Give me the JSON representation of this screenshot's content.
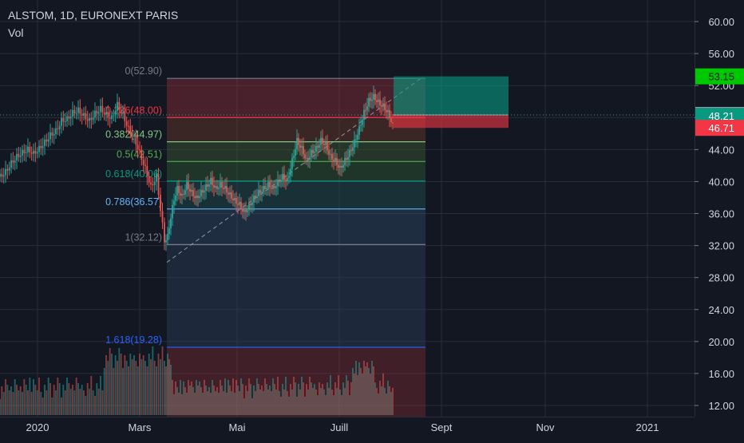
{
  "header": {
    "symbol_line": "ALSTOM, 1D, EURONEXT PARIS",
    "indicator": "Vol"
  },
  "colors": {
    "background": "#131722",
    "grid": "#2a2e39",
    "axis_text": "#d1d4dc",
    "up": "#26a69a",
    "down": "#ef5350",
    "target": "#089981",
    "stop": "#f23645",
    "fib_0": "#787b86",
    "fib_0236": "#f23645",
    "fib_0382": "#81c784",
    "fib_05": "#4caf50",
    "fib_0618": "#089981",
    "fib_0786": "#64b5f6",
    "fib_1": "#787b86",
    "fib_1618": "#2962ff"
  },
  "chart_data": {
    "type": "candlestick",
    "title": "ALSTOM, 1D, EURONEXT PARIS",
    "x_ticks": [
      "2020",
      "Mars",
      "Mai",
      "Juill",
      "Sept",
      "Nov",
      "2021"
    ],
    "y_ticks": [
      "12.00",
      "16.00",
      "20.00",
      "24.00",
      "28.00",
      "32.00",
      "36.00",
      "40.00",
      "44.00",
      "48.00",
      "52.00",
      "56.00",
      "60.00"
    ],
    "ylim": [
      11.6,
      62.2
    ],
    "grid": true,
    "price_series": {
      "name": "ALSTOM",
      "points": [
        [
          0,
          40.6
        ],
        [
          7,
          41.2
        ],
        [
          14,
          42.3
        ],
        [
          21,
          43.1
        ],
        [
          28,
          43.6
        ],
        [
          35,
          44.0
        ],
        [
          42,
          43.5
        ],
        [
          49,
          44.1
        ],
        [
          56,
          44.9
        ],
        [
          63,
          45.8
        ],
        [
          70,
          46.3
        ],
        [
          77,
          47.6
        ],
        [
          84,
          47.8
        ],
        [
          91,
          48.6
        ],
        [
          98,
          48.9
        ],
        [
          105,
          48.2
        ],
        [
          112,
          47.6
        ],
        [
          119,
          48.5
        ],
        [
          126,
          49.1
        ],
        [
          133,
          48.3
        ],
        [
          140,
          47.9
        ],
        [
          147,
          49.6
        ],
        [
          154,
          48.3
        ],
        [
          161,
          46.6
        ],
        [
          168,
          45.4
        ],
        [
          175,
          43.6
        ],
        [
          182,
          41.6
        ],
        [
          189,
          39.3
        ],
        [
          196,
          40.6
        ],
        [
          201,
          36.5
        ],
        [
          206,
          32.6
        ],
        [
          210,
          33.1
        ],
        [
          214,
          35.6
        ],
        [
          218,
          37.8
        ],
        [
          222,
          39.1
        ],
        [
          228,
          38.1
        ],
        [
          234,
          39.6
        ],
        [
          240,
          38.6
        ],
        [
          246,
          37.9
        ],
        [
          252,
          38.6
        ],
        [
          258,
          39.3
        ],
        [
          264,
          40.1
        ],
        [
          270,
          39.1
        ],
        [
          276,
          39.6
        ],
        [
          282,
          39.1
        ],
        [
          288,
          38.3
        ],
        [
          294,
          37.6
        ],
        [
          300,
          37.1
        ],
        [
          306,
          36.1
        ],
        [
          312,
          36.9
        ],
        [
          318,
          37.9
        ],
        [
          324,
          38.6
        ],
        [
          330,
          39.1
        ],
        [
          336,
          39.6
        ],
        [
          342,
          39.1
        ],
        [
          348,
          39.9
        ],
        [
          354,
          40.6
        ],
        [
          360,
          40.1
        ],
        [
          366,
          42.6
        ],
        [
          372,
          45.1
        ],
        [
          378,
          44.1
        ],
        [
          384,
          42.6
        ],
        [
          390,
          43.6
        ],
        [
          396,
          44.1
        ],
        [
          402,
          45.1
        ],
        [
          408,
          44.6
        ],
        [
          414,
          43.1
        ],
        [
          420,
          42.6
        ],
        [
          426,
          41.6
        ],
        [
          432,
          42.6
        ],
        [
          438,
          43.6
        ],
        [
          444,
          44.9
        ],
        [
          450,
          46.6
        ],
        [
          456,
          48.6
        ],
        [
          462,
          50.1
        ],
        [
          468,
          50.6
        ],
        [
          474,
          49.9
        ],
        [
          480,
          49.4
        ],
        [
          486,
          48.6
        ],
        [
          490,
          47.6
        ],
        [
          492,
          46.9
        ]
      ]
    },
    "volume_series": {
      "name": "Vol",
      "panel": "bottom"
    },
    "fibonacci_retracement": {
      "levels": [
        {
          "ratio": "0",
          "price": 52.9,
          "label": "0(52.90)"
        },
        {
          "ratio": "0.236",
          "price": 48.0,
          "label": "0.236(48.00)"
        },
        {
          "ratio": "0.382",
          "price": 44.97,
          "label": "0.382(44.97)"
        },
        {
          "ratio": "0.5",
          "price": 42.51,
          "label": "0.5(42.51)"
        },
        {
          "ratio": "0.618",
          "price": 40.06,
          "label": "0.618(40.06)"
        },
        {
          "ratio": "0.786",
          "price": 36.57,
          "label": "0.786(36.57)"
        },
        {
          "ratio": "1",
          "price": 32.12,
          "label": "1(32.12)"
        },
        {
          "ratio": "1.618",
          "price": 19.28,
          "label": "1.618(19.28)"
        }
      ],
      "trend_line": {
        "from_price": 29.9,
        "to_price": 53.1
      }
    },
    "position": {
      "type": "long",
      "entry": 48.33,
      "target": 53.15,
      "stop": 46.71,
      "current": 48.21,
      "labels": {
        "target": "53.15",
        "entry": "48.33",
        "current": "48.21",
        "stop": "46.71"
      }
    }
  }
}
